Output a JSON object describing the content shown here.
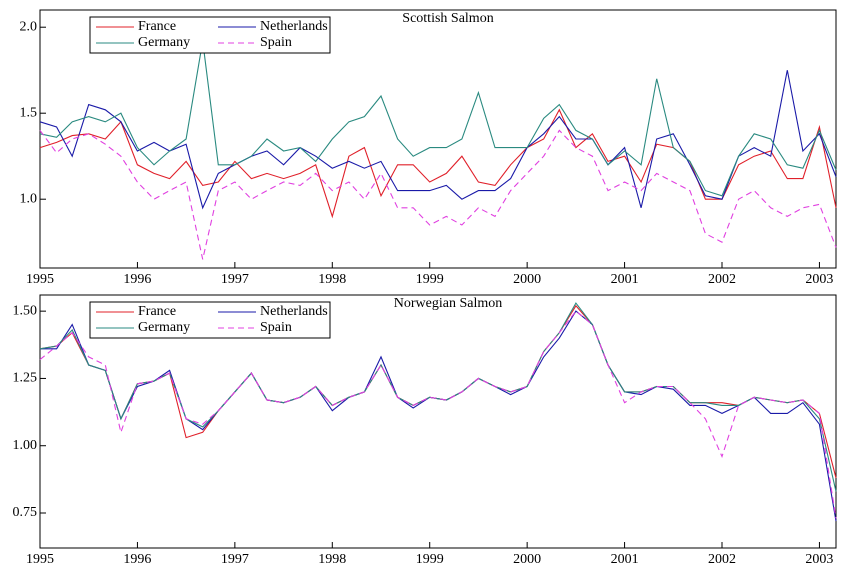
{
  "chart_data": [
    {
      "type": "line",
      "title": "Scottish Salmon",
      "legend": "upper left",
      "grid": false,
      "x": [
        1995,
        1995.17,
        1995.33,
        1995.5,
        1995.67,
        1995.83,
        1996,
        1996.17,
        1996.33,
        1996.5,
        1996.67,
        1996.83,
        1997,
        1997.17,
        1997.33,
        1997.5,
        1997.67,
        1997.83,
        1998,
        1998.17,
        1998.33,
        1998.5,
        1998.67,
        1998.83,
        1999,
        1999.17,
        1999.33,
        1999.5,
        1999.67,
        1999.83,
        2000,
        2000.17,
        2000.33,
        2000.5,
        2000.67,
        2000.83,
        2001,
        2001.17,
        2001.33,
        2001.5,
        2001.67,
        2001.83,
        2002,
        2002.17,
        2002.33,
        2002.5,
        2002.67,
        2002.83,
        2003,
        2003.17
      ],
      "xlim": [
        1995,
        2003.17
      ],
      "xticks": [
        1995,
        1996,
        1997,
        1998,
        1999,
        2000,
        2001,
        2002,
        2003
      ],
      "ylim": [
        0.6,
        2.1
      ],
      "yticks": [
        {
          "value": 1.0,
          "label": "1.0"
        },
        1.5,
        {
          "value": 2.0,
          "label": "2.0"
        }
      ],
      "series": [
        {
          "name": "France",
          "color": "#e0202a",
          "dash": false,
          "values": [
            1.3,
            1.33,
            1.37,
            1.38,
            1.35,
            1.45,
            1.2,
            1.15,
            1.12,
            1.22,
            1.08,
            1.1,
            1.22,
            1.12,
            1.15,
            1.12,
            1.15,
            1.2,
            0.9,
            1.25,
            1.3,
            1.02,
            1.2,
            1.2,
            1.1,
            1.15,
            1.25,
            1.1,
            1.08,
            1.2,
            1.3,
            1.35,
            1.52,
            1.3,
            1.38,
            1.22,
            1.25,
            1.1,
            1.32,
            1.3,
            1.22,
            1.0,
            1.0,
            1.2,
            1.25,
            1.28,
            1.12,
            1.12,
            1.42,
            0.95
          ]
        },
        {
          "name": "Netherlands",
          "color": "#1a1aa8",
          "dash": false,
          "values": [
            1.45,
            1.42,
            1.25,
            1.55,
            1.52,
            1.45,
            1.28,
            1.33,
            1.28,
            1.32,
            0.95,
            1.15,
            1.2,
            1.25,
            1.28,
            1.2,
            1.3,
            1.25,
            1.18,
            1.22,
            1.18,
            1.22,
            1.05,
            1.05,
            1.05,
            1.08,
            1.0,
            1.05,
            1.05,
            1.12,
            1.3,
            1.38,
            1.48,
            1.35,
            1.35,
            1.2,
            1.3,
            0.95,
            1.35,
            1.38,
            1.2,
            1.02,
            1.0,
            1.25,
            1.3,
            1.25,
            1.75,
            1.28,
            1.38,
            1.13
          ]
        },
        {
          "name": "Germany",
          "color": "#2a8a80",
          "dash": false,
          "values": [
            1.38,
            1.36,
            1.45,
            1.48,
            1.45,
            1.5,
            1.3,
            1.2,
            1.28,
            1.35,
            1.92,
            1.2,
            1.2,
            1.25,
            1.35,
            1.28,
            1.3,
            1.22,
            1.35,
            1.45,
            1.48,
            1.6,
            1.35,
            1.25,
            1.3,
            1.3,
            1.35,
            1.62,
            1.3,
            1.3,
            1.3,
            1.47,
            1.55,
            1.4,
            1.35,
            1.2,
            1.28,
            1.2,
            1.7,
            1.3,
            1.22,
            1.05,
            1.02,
            1.25,
            1.38,
            1.35,
            1.2,
            1.18,
            1.4,
            1.17
          ]
        },
        {
          "name": "Spain",
          "color": "#e040e0",
          "dash": true,
          "values": [
            1.4,
            1.27,
            1.35,
            1.38,
            1.32,
            1.25,
            1.1,
            1.0,
            1.05,
            1.1,
            0.65,
            1.05,
            1.1,
            1.0,
            1.05,
            1.1,
            1.08,
            1.15,
            1.05,
            1.1,
            1.0,
            1.15,
            0.95,
            0.95,
            0.85,
            0.9,
            0.85,
            0.95,
            0.9,
            1.05,
            1.15,
            1.25,
            1.4,
            1.3,
            1.25,
            1.05,
            1.1,
            1.05,
            1.15,
            1.1,
            1.05,
            0.8,
            0.75,
            1.0,
            1.05,
            0.95,
            0.9,
            0.95,
            0.97,
            0.72
          ]
        }
      ]
    },
    {
      "type": "line",
      "title": "Norwegian Salmon",
      "legend": "upper left",
      "grid": false,
      "x": [
        1995,
        1995.17,
        1995.33,
        1995.5,
        1995.67,
        1995.83,
        1996,
        1996.17,
        1996.33,
        1996.5,
        1996.67,
        1996.83,
        1997,
        1997.17,
        1997.33,
        1997.5,
        1997.67,
        1997.83,
        1998,
        1998.17,
        1998.33,
        1998.5,
        1998.67,
        1998.83,
        1999,
        1999.17,
        1999.33,
        1999.5,
        1999.67,
        1999.83,
        2000,
        2000.17,
        2000.33,
        2000.5,
        2000.67,
        2000.83,
        2001,
        2001.17,
        2001.33,
        2001.5,
        2001.67,
        2001.83,
        2002,
        2002.17,
        2002.33,
        2002.5,
        2002.67,
        2002.83,
        2003,
        2003.17
      ],
      "xlim": [
        1995,
        2003.17
      ],
      "xticks": [
        1995,
        1996,
        1997,
        1998,
        1999,
        2000,
        2001,
        2002,
        2003
      ],
      "ylim": [
        0.62,
        1.56
      ],
      "yticks": [
        {
          "value": 0.75,
          "label": "0.75"
        },
        {
          "value": 1.0,
          "label": "1.00"
        },
        {
          "value": 1.25,
          "label": "1.25"
        },
        {
          "value": 1.5,
          "label": "1.50"
        }
      ],
      "series": [
        {
          "name": "France",
          "color": "#e0202a",
          "dash": false,
          "values": [
            1.36,
            1.37,
            1.42,
            1.3,
            1.28,
            1.1,
            1.23,
            1.24,
            1.27,
            1.03,
            1.05,
            1.13,
            1.2,
            1.27,
            1.17,
            1.16,
            1.18,
            1.22,
            1.15,
            1.18,
            1.2,
            1.3,
            1.18,
            1.15,
            1.18,
            1.17,
            1.2,
            1.25,
            1.22,
            1.2,
            1.22,
            1.35,
            1.42,
            1.52,
            1.45,
            1.3,
            1.2,
            1.2,
            1.22,
            1.22,
            1.16,
            1.16,
            1.16,
            1.15,
            1.18,
            1.17,
            1.16,
            1.17,
            1.12,
            0.88
          ]
        },
        {
          "name": "Netherlands",
          "color": "#1a1aa8",
          "dash": false,
          "values": [
            1.36,
            1.36,
            1.45,
            1.3,
            1.28,
            1.1,
            1.22,
            1.24,
            1.28,
            1.1,
            1.06,
            1.13,
            1.2,
            1.27,
            1.17,
            1.16,
            1.18,
            1.22,
            1.13,
            1.18,
            1.2,
            1.33,
            1.18,
            1.14,
            1.18,
            1.17,
            1.2,
            1.25,
            1.22,
            1.19,
            1.22,
            1.33,
            1.4,
            1.5,
            1.45,
            1.3,
            1.2,
            1.19,
            1.22,
            1.21,
            1.15,
            1.15,
            1.12,
            1.15,
            1.18,
            1.12,
            1.12,
            1.16,
            1.08,
            0.72
          ]
        },
        {
          "name": "Germany",
          "color": "#2a8a80",
          "dash": false,
          "values": [
            1.36,
            1.37,
            1.43,
            1.3,
            1.28,
            1.1,
            1.23,
            1.24,
            1.27,
            1.1,
            1.07,
            1.13,
            1.2,
            1.27,
            1.17,
            1.16,
            1.18,
            1.22,
            1.15,
            1.18,
            1.2,
            1.3,
            1.18,
            1.15,
            1.18,
            1.17,
            1.2,
            1.25,
            1.22,
            1.2,
            1.22,
            1.35,
            1.42,
            1.53,
            1.45,
            1.3,
            1.2,
            1.2,
            1.22,
            1.22,
            1.16,
            1.16,
            1.15,
            1.15,
            1.18,
            1.17,
            1.16,
            1.17,
            1.1,
            0.83
          ]
        },
        {
          "name": "Spain",
          "color": "#e040e0",
          "dash": true,
          "values": [
            1.32,
            1.37,
            1.42,
            1.33,
            1.3,
            1.05,
            1.23,
            1.24,
            1.27,
            1.1,
            1.08,
            1.13,
            1.2,
            1.27,
            1.17,
            1.16,
            1.18,
            1.22,
            1.15,
            1.18,
            1.2,
            1.3,
            1.18,
            1.15,
            1.18,
            1.17,
            1.2,
            1.25,
            1.22,
            1.2,
            1.22,
            1.35,
            1.42,
            1.5,
            1.45,
            1.3,
            1.16,
            1.2,
            1.22,
            1.22,
            1.16,
            1.1,
            0.96,
            1.15,
            1.18,
            1.17,
            1.16,
            1.17,
            1.12,
            0.73
          ]
        }
      ]
    }
  ]
}
